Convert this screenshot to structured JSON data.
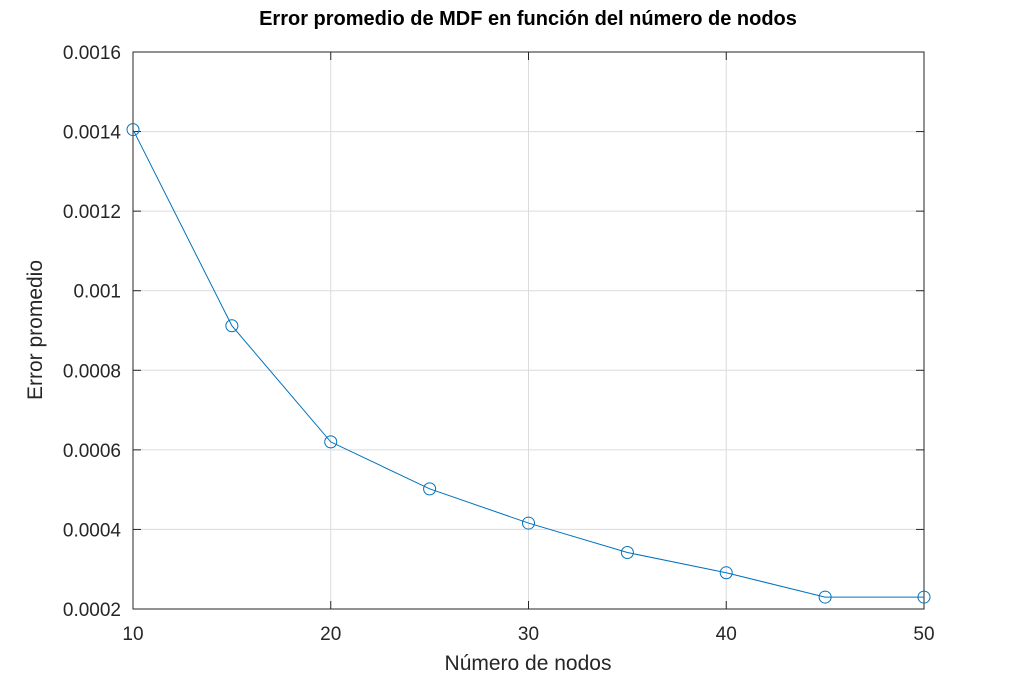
{
  "chart_data": {
    "type": "line",
    "title": "Error promedio de MDF en función del número de nodos",
    "xlabel": "Número de nodos",
    "ylabel": "Error promedio",
    "xlim": [
      10,
      50
    ],
    "ylim": [
      0.0002,
      0.0016
    ],
    "xticks": [
      10,
      20,
      30,
      40,
      50
    ],
    "xtick_labels": [
      "10",
      "20",
      "30",
      "40",
      "50"
    ],
    "yticks": [
      0.0002,
      0.0004,
      0.0006,
      0.0008,
      0.001,
      0.0012,
      0.0014,
      0.0016
    ],
    "ytick_labels": [
      "0.0002",
      "0.0004",
      "0.0006",
      "0.0008",
      "0.001",
      "0.0012",
      "0.0014",
      "0.0016"
    ],
    "grid": true,
    "marker": "circle",
    "line_color": "#0072bd",
    "series": [
      {
        "x": [
          10,
          15,
          20,
          25,
          30,
          35,
          40,
          45,
          50
        ],
        "y": [
          0.001405,
          0.000912,
          0.00062,
          0.000502,
          0.000416,
          0.000342,
          0.000291,
          0.00023,
          0.00023
        ]
      }
    ]
  }
}
